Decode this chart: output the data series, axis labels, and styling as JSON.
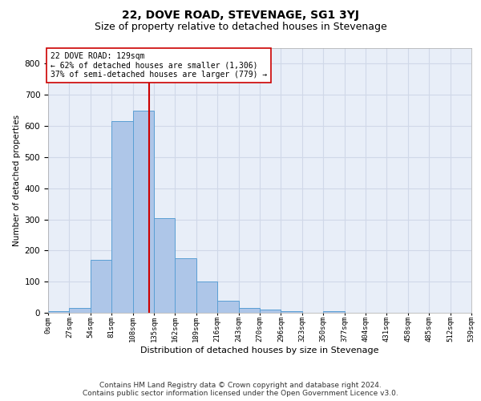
{
  "title": "22, DOVE ROAD, STEVENAGE, SG1 3YJ",
  "subtitle": "Size of property relative to detached houses in Stevenage",
  "xlabel": "Distribution of detached houses by size in Stevenage",
  "ylabel": "Number of detached properties",
  "property_size": 129,
  "bin_width": 27,
  "bin_starts": [
    0,
    27,
    54,
    81,
    108,
    135,
    162,
    189,
    216,
    243,
    270,
    297,
    324,
    351,
    378,
    405,
    432,
    459,
    486,
    513
  ],
  "bin_labels": [
    "0sqm",
    "27sqm",
    "54sqm",
    "81sqm",
    "108sqm",
    "135sqm",
    "162sqm",
    "189sqm",
    "216sqm",
    "243sqm",
    "270sqm",
    "296sqm",
    "323sqm",
    "350sqm",
    "377sqm",
    "404sqm",
    "431sqm",
    "458sqm",
    "485sqm",
    "512sqm",
    "539sqm"
  ],
  "counts": [
    5,
    15,
    170,
    615,
    650,
    305,
    175,
    100,
    38,
    15,
    10,
    5,
    0,
    5,
    0,
    0,
    0,
    0,
    0,
    0
  ],
  "bar_color": "#aec6e8",
  "bar_edge_color": "#5a9fd4",
  "vline_color": "#cc0000",
  "annotation_text": "22 DOVE ROAD: 129sqm\n← 62% of detached houses are smaller (1,306)\n37% of semi-detached houses are larger (779) →",
  "annotation_box_color": "white",
  "annotation_box_edge_color": "#cc0000",
  "ylim": [
    0,
    850
  ],
  "yticks": [
    0,
    100,
    200,
    300,
    400,
    500,
    600,
    700,
    800
  ],
  "grid_color": "#d0d8e8",
  "background_color": "#e8eef8",
  "footer_line1": "Contains HM Land Registry data © Crown copyright and database right 2024.",
  "footer_line2": "Contains public sector information licensed under the Open Government Licence v3.0.",
  "title_fontsize": 10,
  "subtitle_fontsize": 9,
  "annotation_fontsize": 7,
  "footer_fontsize": 6.5,
  "ylabel_fontsize": 7.5,
  "xlabel_fontsize": 8,
  "ytick_fontsize": 7.5,
  "xtick_fontsize": 6.5
}
